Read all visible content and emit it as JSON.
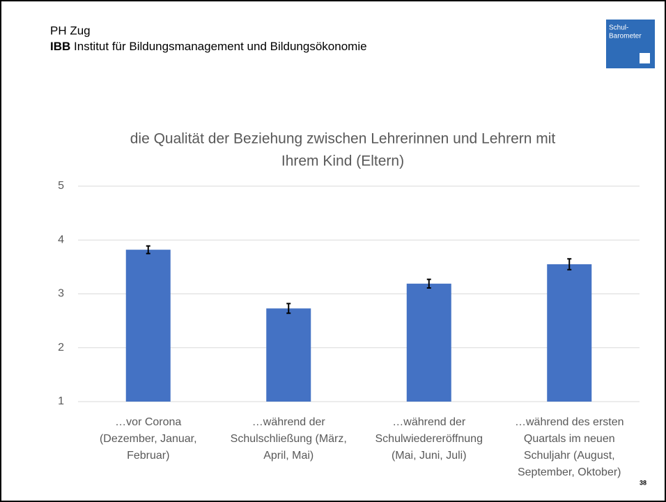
{
  "header": {
    "line1": "PH Zug",
    "line2_bold": "IBB",
    "line2_rest": "Institut für Bildungsmanagement und Bildungsökonomie"
  },
  "logo": {
    "line1": "Schul-",
    "line2": "Barometer"
  },
  "page_number": "38",
  "chart_data": {
    "type": "bar",
    "title": [
      "die Qualität der Beziehung zwischen Lehrerinnen und Lehrern mit",
      "Ihrem Kind (Eltern)"
    ],
    "categories": [
      [
        "…vor Corona",
        "(Dezember, Januar,",
        "Februar)"
      ],
      [
        "…während der",
        "Schulschließung (März,",
        "April, Mai)"
      ],
      [
        "…während der",
        "Schulwiedereröffnung",
        "(Mai, Juni, Juli)"
      ],
      [
        "…während des ersten",
        "Quartals im neuen",
        "Schuljahr (August,",
        "September, Oktober)"
      ]
    ],
    "values": [
      3.82,
      2.73,
      3.19,
      3.55
    ],
    "errors": [
      0.07,
      0.09,
      0.08,
      0.1
    ],
    "color": "#4472c4",
    "ylim": [
      1,
      5
    ],
    "yticks": [
      1,
      2,
      3,
      4,
      5
    ],
    "grid": true
  }
}
